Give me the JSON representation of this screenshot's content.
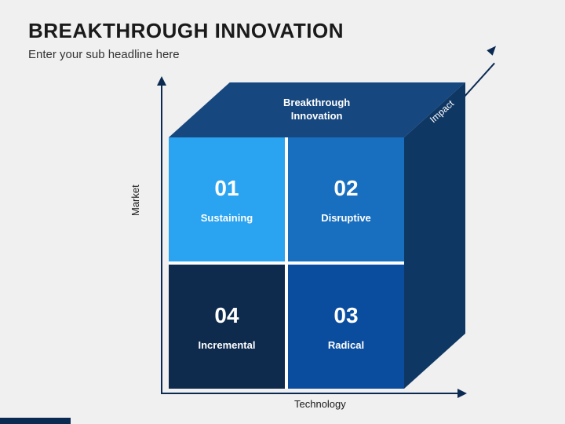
{
  "header": {
    "title": "BREAKTHROUGH INNOVATION",
    "subtitle": "Enter your sub headline here"
  },
  "diagram": {
    "type": "3d-cube-quadrant",
    "background_color": "#f0f0f0",
    "axis_color": "#0b2a52",
    "axis_width": 2,
    "y_axis_label": "Market",
    "x_axis_label": "Technology",
    "z_axis_label": "Impact",
    "axis_label_fontsize": 13,
    "axis_label_color": "#1a1a1a",
    "top_face": {
      "label_line1": "Breakthrough",
      "label_line2": "Innovation",
      "color": "#17477f",
      "label_color": "#ffffff",
      "label_fontsize": 13
    },
    "right_face": {
      "color": "#0f3763"
    },
    "grid_gap": 4,
    "grid_gap_color": "#ffffff",
    "cells": [
      {
        "num": "01",
        "label": "Sustaining",
        "color": "#2aa3f0"
      },
      {
        "num": "02",
        "label": "Disruptive",
        "color": "#186fbf"
      },
      {
        "num": "04",
        "label": "Incremental",
        "color": "#0e2a4d"
      },
      {
        "num": "03",
        "label": "Radical",
        "color": "#0a4d9e"
      }
    ],
    "cell_num_fontsize": 28,
    "cell_label_fontsize": 13,
    "cell_text_color": "#ffffff"
  },
  "footer": {
    "accent_color": "#0b2a52"
  }
}
